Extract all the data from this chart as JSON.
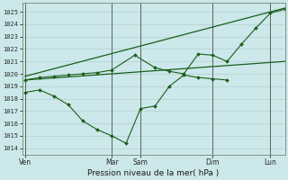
{
  "background_color": "#cce8ea",
  "grid_color": "#b0c8ca",
  "line_color": "#1a5e1a",
  "title": "Pression niveau de la mer( hPa )",
  "ylim": [
    1013.5,
    1025.7
  ],
  "yticks": [
    1014,
    1015,
    1016,
    1017,
    1018,
    1019,
    1020,
    1021,
    1022,
    1023,
    1024,
    1025
  ],
  "xtick_labels": [
    "Ven",
    "Mar",
    "Sam",
    "Dim",
    "Lun"
  ],
  "xtick_positions": [
    0.0,
    3.0,
    4.0,
    6.5,
    8.5
  ],
  "vline_positions": [
    0.0,
    3.0,
    4.0,
    6.5,
    8.5
  ],
  "xlim": [
    -0.1,
    9.0
  ],
  "series": [
    {
      "name": "bottom_wiggly",
      "x": [
        0,
        0.5,
        1.0,
        1.5,
        2.0,
        2.5,
        3.0,
        3.5,
        4.0,
        4.5,
        5.0,
        5.5,
        6.0,
        6.5,
        7.0
      ],
      "y": [
        1018.5,
        1018.7,
        1018.2,
        1017.5,
        1016.2,
        1015.5,
        1015.0,
        1014.4,
        1017.2,
        1017.4,
        1019.0,
        1019.9,
        1019.7,
        1019.6,
        1019.5
      ],
      "has_markers": true
    },
    {
      "name": "straight_upper",
      "x": [
        0.0,
        9.0
      ],
      "y": [
        1019.8,
        1025.3
      ],
      "has_markers": false
    },
    {
      "name": "straight_lower",
      "x": [
        0.0,
        9.0
      ],
      "y": [
        1019.5,
        1021.0
      ],
      "has_markers": false
    },
    {
      "name": "top_wiggly",
      "x": [
        0,
        0.5,
        1.0,
        1.5,
        2.0,
        2.5,
        3.0,
        3.8,
        4.5,
        5.0,
        5.5,
        6.0,
        6.5,
        7.0,
        7.5,
        8.0,
        8.5,
        9.0
      ],
      "y": [
        1019.5,
        1019.7,
        1019.8,
        1019.9,
        1020.0,
        1020.1,
        1020.3,
        1021.5,
        1020.5,
        1020.2,
        1020.0,
        1021.6,
        1021.5,
        1021.0,
        1022.4,
        1023.7,
        1024.9,
        1025.2
      ],
      "has_markers": true
    }
  ]
}
